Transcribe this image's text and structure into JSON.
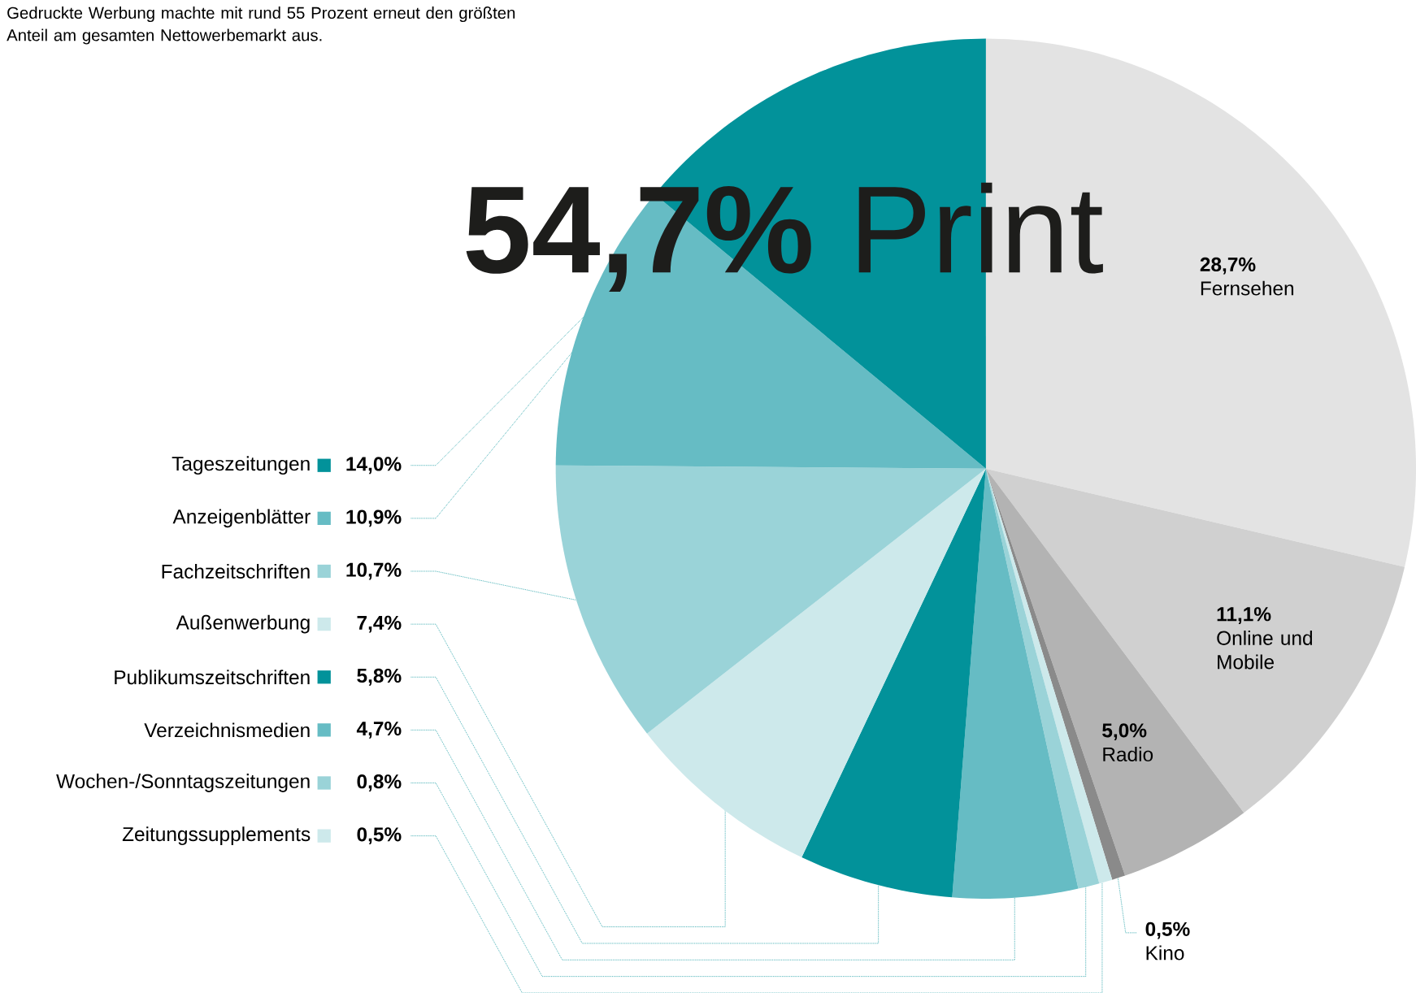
{
  "chart_data": {
    "type": "pie",
    "title": "**54,7%** Print",
    "subtitle": "Gedruckte Werbung machte mit rund 55 Prozent erneut den größten Anteil am gesamten Nettowerbemarkt aus.",
    "categories": [
      "Fernsehen",
      "Online und Mobile",
      "Radio",
      "Kino",
      "Zeitungssupplements",
      "Wochen-/Sonntagszeitungen",
      "Verzeichnismedien",
      "Publikumszeitschriften",
      "Außenwerbung",
      "Fachzeitschriften",
      "Anzeigenblätter",
      "Tageszeitungen"
    ],
    "values": [
      28.7,
      11.1,
      5.0,
      0.5,
      0.5,
      0.8,
      4.7,
      5.8,
      7.4,
      10.7,
      10.9,
      14.0
    ],
    "value_labels": [
      "28,7%",
      "11,1%",
      "5,0%",
      "0,5%",
      "0,5%",
      "0,8%",
      "4,7%",
      "5,8%",
      "7,4%",
      "10,7%",
      "10,9%",
      "14,0%"
    ],
    "colors": [
      "#e3e3e3",
      "#d0d0d0",
      "#b3b3b3",
      "#8a8a8a",
      "#cde9eb",
      "#9ad3d8",
      "#66bcc4",
      "#02929a",
      "#cde9eb",
      "#9ad3d8",
      "#66bcc4",
      "#02929a"
    ],
    "legend": "left"
  }
}
